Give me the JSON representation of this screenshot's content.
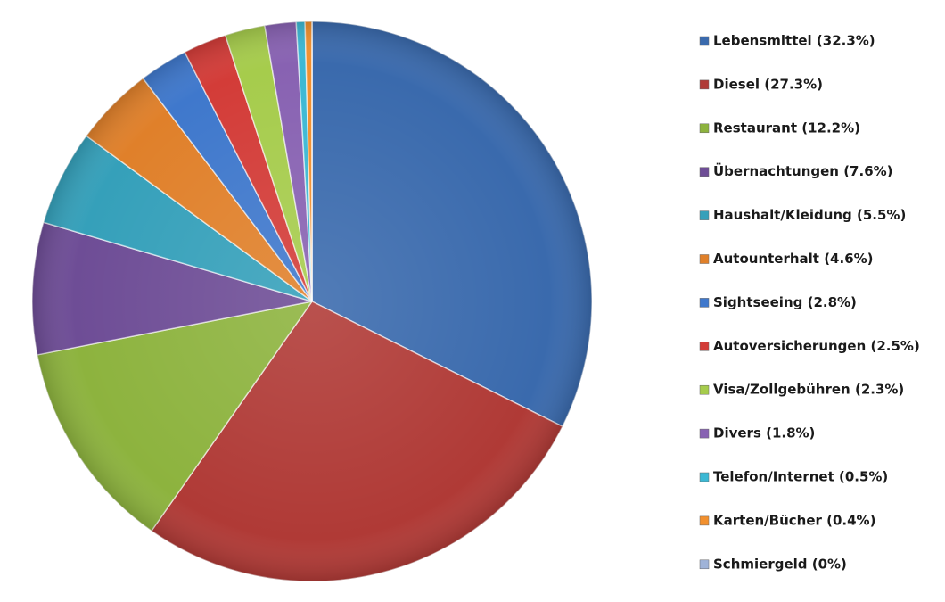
{
  "chart_data": {
    "type": "pie",
    "categories": [
      "Lebensmittel (32.3%)",
      "Diesel (27.3%)",
      "Restaurant (12.2%)",
      "Übernachtungen (7.6%)",
      "Haushalt/Kleidung (5.5%)",
      "Autounterhalt (4.6%)",
      "Sightseeing (2.8%)",
      "Autoversicherungen (2.5%)",
      "Visa/Zollgebühren (2.3%)",
      "Divers (1.8%)",
      "Telefon/Internet (0.5%)",
      "Karten/Bücher (0.4%)",
      "Schmiergeld (0%)"
    ],
    "values": [
      32.3,
      27.3,
      12.2,
      7.6,
      5.5,
      4.6,
      2.8,
      2.5,
      2.3,
      1.8,
      0.5,
      0.4,
      0
    ],
    "colors": [
      "#3a6aad",
      "#b03a36",
      "#8db33e",
      "#6e4d96",
      "#35a0ba",
      "#e0802a",
      "#3f78cc",
      "#d33c38",
      "#a6cc4c",
      "#8862b2",
      "#3cb8d4",
      "#f2902e",
      "#9fb3d8"
    ],
    "legend": "right"
  }
}
